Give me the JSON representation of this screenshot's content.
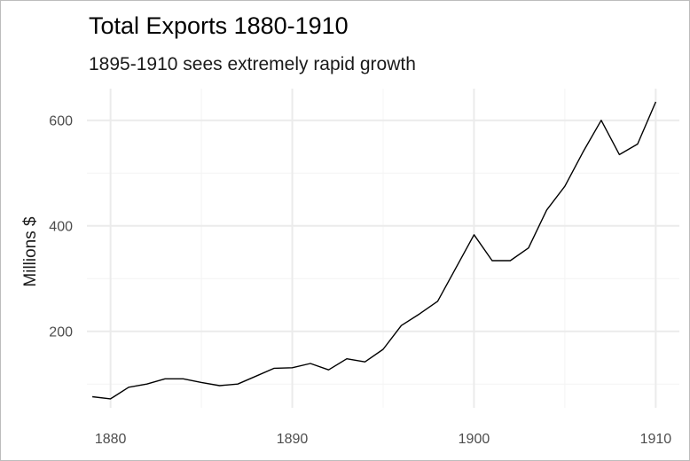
{
  "chart_data": {
    "type": "line",
    "title": "Total Exports 1880-1910",
    "subtitle": "1895-1910 sees extremely rapid growth",
    "xlabel": "",
    "ylabel": "Millions $",
    "xlim": [
      1878.7,
      1911.3
    ],
    "ylim": [
      55,
      660
    ],
    "x_ticks": [
      1880,
      1890,
      1900,
      1910
    ],
    "y_ticks": [
      200,
      400,
      600
    ],
    "x_minor": [
      1885,
      1895,
      1905
    ],
    "y_minor": [
      100,
      300,
      500
    ],
    "grid": true,
    "line_color": "#000000",
    "grid_color": "#ebebeb",
    "series": [
      {
        "x": [
          1879,
          1880,
          1881,
          1882,
          1883,
          1884,
          1885,
          1886,
          1887,
          1888,
          1889,
          1890,
          1891,
          1892,
          1893,
          1894,
          1895,
          1896,
          1897,
          1898,
          1899,
          1900,
          1901,
          1902,
          1903,
          1904,
          1905,
          1906,
          1907,
          1908,
          1909,
          1910
        ],
        "values": [
          76,
          72,
          94,
          100,
          110,
          110,
          103,
          97,
          100,
          115,
          130,
          131,
          139,
          127,
          148,
          142,
          166,
          211,
          233,
          257,
          320,
          383,
          334,
          334,
          358,
          430,
          475,
          540,
          600,
          535,
          555,
          635
        ]
      }
    ]
  }
}
